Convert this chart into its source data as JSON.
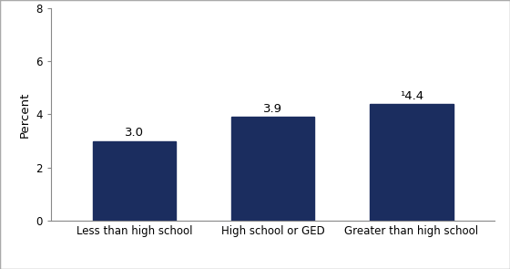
{
  "categories": [
    "Less than high school",
    "High school or GED",
    "Greater than high school"
  ],
  "values": [
    3.0,
    3.9,
    4.4
  ],
  "bar_labels": [
    "3.0",
    "3.9",
    "¹4.4"
  ],
  "bar_color": "#1b2d5f",
  "ylabel": "Percent",
  "ylim": [
    0,
    8
  ],
  "yticks": [
    0,
    2,
    4,
    6,
    8
  ],
  "bar_width": 0.6,
  "label_fontsize": 9.5,
  "tick_fontsize": 8.5,
  "ylabel_fontsize": 9.5,
  "background_color": "#ffffff",
  "border_color": "#aaaaaa"
}
